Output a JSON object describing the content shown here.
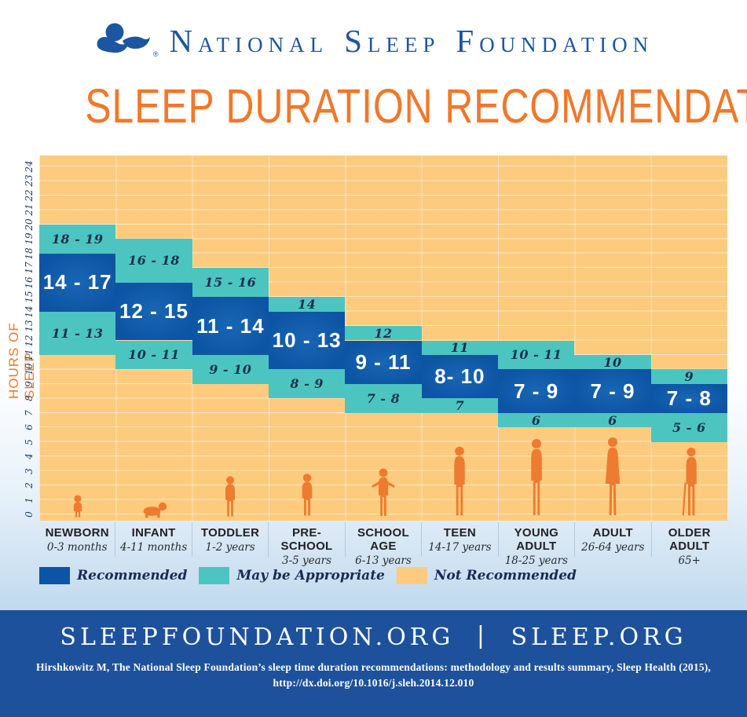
{
  "header": {
    "brand": "National Sleep Foundation",
    "brand_words": [
      "National",
      "Sleep",
      "Foundation"
    ],
    "registered_mark": "®"
  },
  "title": "SLEEP DURATION RECOMMENDATIONS",
  "chart_data": {
    "type": "bar",
    "variant": "stacked-range-columns",
    "title": "SLEEP DURATION RECOMMENDATIONS",
    "ylabel": "HOURS OF SLEEP",
    "ylim": [
      0,
      24
    ],
    "y_tick_step": 1,
    "grid": true,
    "legend_position": "bottom-left",
    "colors": {
      "recommended": "#0d55a4",
      "recommended_center": "#1866b4",
      "may": "#4cc5c0",
      "not": "#fccb7e",
      "accent": "#f0782a",
      "figure": "#ee7b2f",
      "footer": "#1d519c",
      "brand": "#1d56a0"
    },
    "groups": [
      {
        "name": "NEWBORN",
        "age": "0-3 months",
        "figure": "newborn",
        "may_high": {
          "text": "18 - 19",
          "from": 18,
          "to": 20
        },
        "recommended": {
          "text": "14 - 17",
          "from": 14,
          "to": 18
        },
        "may_low": {
          "text": "11 - 13",
          "from": 11,
          "to": 14
        }
      },
      {
        "name": "INFANT",
        "age": "4-11 months",
        "figure": "infant",
        "may_high": {
          "text": "16 - 18",
          "from": 16,
          "to": 19
        },
        "recommended": {
          "text": "12 - 15",
          "from": 12,
          "to": 16
        },
        "may_low": {
          "text": "10 - 11",
          "from": 10,
          "to": 12
        }
      },
      {
        "name": "TODDLER",
        "age": "1-2 years",
        "figure": "toddler",
        "may_high": {
          "text": "15 - 16",
          "from": 15,
          "to": 17
        },
        "recommended": {
          "text": "11 - 14",
          "from": 11,
          "to": 15
        },
        "may_low": {
          "text": "9 - 10",
          "from": 9,
          "to": 11
        }
      },
      {
        "name": "PRE-SCHOOL",
        "age": "3-5 years",
        "figure": "preschool",
        "may_high": {
          "text": "14",
          "from": 14,
          "to": 15
        },
        "recommended": {
          "text": "10 - 13",
          "from": 10,
          "to": 14
        },
        "may_low": {
          "text": "8 - 9",
          "from": 8,
          "to": 10
        }
      },
      {
        "name": "SCHOOL AGE",
        "age": "6-13 years",
        "figure": "school",
        "may_high": {
          "text": "12",
          "from": 12,
          "to": 13
        },
        "recommended": {
          "text": "9 - 11",
          "from": 9,
          "to": 12
        },
        "may_low": {
          "text": "7 - 8",
          "from": 7,
          "to": 9
        }
      },
      {
        "name": "TEEN",
        "age": "14-17 years",
        "figure": "teen",
        "may_high": {
          "text": "11",
          "from": 11,
          "to": 12
        },
        "recommended": {
          "text": "8- 10",
          "from": 8,
          "to": 11
        },
        "may_low": {
          "text": "7",
          "from": 7,
          "to": 8
        }
      },
      {
        "name": "YOUNG ADULT",
        "age": "18-25 years",
        "figure": "young-adult",
        "may_high": {
          "text": "10 - 11",
          "from": 10,
          "to": 12
        },
        "recommended": {
          "text": "7 - 9",
          "from": 7,
          "to": 10
        },
        "may_low": {
          "text": "6",
          "from": 6,
          "to": 7
        }
      },
      {
        "name": "ADULT",
        "age": "26-64 years",
        "figure": "adult",
        "may_high": {
          "text": "10",
          "from": 10,
          "to": 11
        },
        "recommended": {
          "text": "7 - 9",
          "from": 7,
          "to": 10
        },
        "may_low": {
          "text": "6",
          "from": 6,
          "to": 7
        }
      },
      {
        "name": "OLDER ADULT",
        "age": "65+",
        "figure": "older-adult",
        "may_high": {
          "text": "9",
          "from": 9,
          "to": 10
        },
        "recommended": {
          "text": "7 - 8",
          "from": 7,
          "to": 9
        },
        "may_low": {
          "text": "5 - 6",
          "from": 5,
          "to": 7
        }
      }
    ],
    "legend": [
      {
        "label": "Recommended",
        "key": "recommended"
      },
      {
        "label": "May be Appropriate",
        "key": "may"
      },
      {
        "label": "Not Recommended",
        "key": "not"
      }
    ]
  },
  "footer": {
    "links": [
      "SLEEPFOUNDATION.ORG",
      "SLEEP.ORG"
    ],
    "separator": "|",
    "citation_line1": "Hirshkowitz M, The National Sleep Foundation’s sleep time duration recommendations: methodology and results summary, Sleep Health (2015),",
    "citation_line2": "http://dx.doi.org/10.1016/j.sleh.2014.12.010"
  }
}
